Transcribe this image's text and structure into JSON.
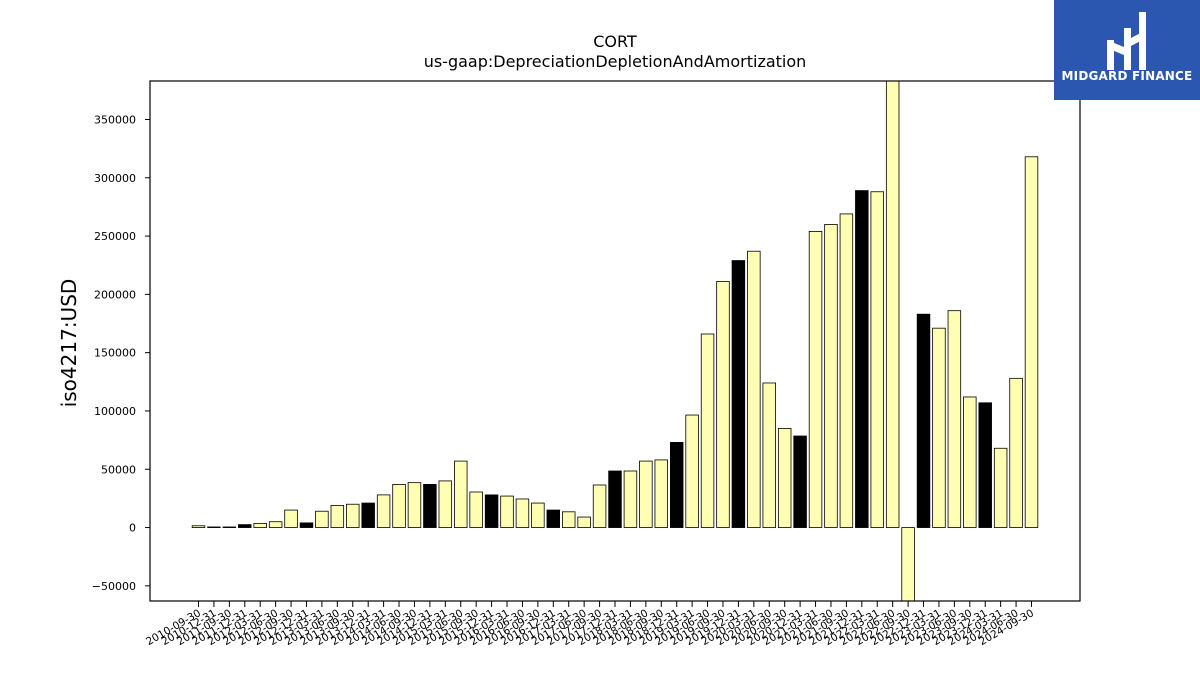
{
  "chart_data": {
    "type": "bar",
    "title": "CORT",
    "subtitle": "us-gaap:DepreciationDepletionAndAmortization",
    "xlabel": "",
    "ylabel": "iso4217:USD",
    "ylim": [
      -63000,
      383000
    ],
    "yticks": [
      -50000,
      0,
      50000,
      100000,
      150000,
      200000,
      250000,
      300000,
      350000
    ],
    "colors": {
      "highlight": "#000000",
      "normal": "#ffffb3",
      "edge": "#000000"
    },
    "categories": [
      "2010-09-30",
      "2010-12-31",
      "2011-09-30",
      "2011-12-31",
      "2012-03-31",
      "2012-06-30",
      "2012-09-30",
      "2012-12-31",
      "2013-03-31",
      "2013-06-30",
      "2013-09-30",
      "2013-12-31",
      "2014-03-31",
      "2014-06-30",
      "2014-09-30",
      "2014-12-31",
      "2015-03-31",
      "2015-06-30",
      "2015-09-30",
      "2015-12-31",
      "2016-03-31",
      "2016-06-30",
      "2016-09-30",
      "2016-12-31",
      "2017-03-31",
      "2017-06-30",
      "2017-09-30",
      "2017-12-31",
      "2018-03-31",
      "2018-06-30",
      "2018-09-30",
      "2018-12-31",
      "2019-03-31",
      "2019-06-30",
      "2019-09-30",
      "2019-12-31",
      "2020-03-31",
      "2020-06-30",
      "2020-09-30",
      "2020-12-31",
      "2021-03-31",
      "2021-06-30",
      "2021-09-30",
      "2021-12-31",
      "2022-03-31",
      "2022-06-30",
      "2022-09-30",
      "2022-12-31",
      "2023-03-31",
      "2023-06-30",
      "2023-09-30",
      "2023-12-31",
      "2024-03-31",
      "2024-06-30",
      "2024-09-30"
    ],
    "tick_labels": [
      "2010-09-30",
      "2010-12-31",
      "2011-09-30",
      "2011-12-31",
      "2012-03-31",
      "2012-06-30",
      "2012-09-30",
      "2012-12-31",
      "2013-03-31",
      "2013-06-30",
      "2013-09-30",
      "2013-12-31",
      "2014-03-31",
      "2014-06-30",
      "2014-09-30",
      "2014-12-31",
      "2015-03-31",
      "2015-06-30",
      "2015-09-30",
      "2015-12-31",
      "2016-03-31",
      "2016-06-30",
      "2016-09-30",
      "2016-12-31",
      "2017-03-31",
      "2017-06-30",
      "2017-09-30",
      "2017-12-31",
      "2018-03-31",
      "2018-06-30",
      "2018-09-30",
      "2018-12-31",
      "2019-03-31",
      "2019-06-30",
      "2019-09-30",
      "2019-12-31",
      "2020-03-31",
      "2020-06-30",
      "2020-09-30",
      "2020-12-31",
      "2021-03-31",
      "2021-06-30",
      "2021-09-30",
      "2021-12-31",
      "2022-03-31",
      "2022-06-30",
      "2022-09-30",
      "2022-12-31",
      "2023-03-31",
      "2023-06-30",
      "2023-09-30",
      "2023-12-31",
      "2024-03-31",
      "2024-06-30",
      "2024-09-30"
    ],
    "values": [
      1500,
      500,
      500,
      2500,
      3500,
      5000,
      15000,
      4000,
      14000,
      19000,
      20000,
      21000,
      28000,
      37000,
      38500,
      37000,
      40000,
      57000,
      30500,
      28000,
      27000,
      24500,
      21000,
      15000,
      13500,
      9000,
      36500,
      48500,
      48500,
      57000,
      58000,
      73000,
      96500,
      166000,
      211000,
      229000,
      237000,
      124000,
      85000,
      78500,
      254000,
      260000,
      269000,
      289000,
      288000,
      383000,
      -63000,
      183000,
      171000,
      186000,
      112000,
      107000,
      68000,
      128000,
      318000
    ],
    "highlight": [
      false,
      false,
      false,
      true,
      false,
      false,
      false,
      true,
      false,
      false,
      false,
      true,
      false,
      false,
      false,
      true,
      false,
      false,
      false,
      true,
      false,
      false,
      false,
      true,
      false,
      false,
      false,
      true,
      false,
      false,
      false,
      true,
      false,
      false,
      false,
      true,
      false,
      false,
      false,
      true,
      false,
      false,
      false,
      true,
      false,
      false,
      false,
      true,
      false,
      false,
      false,
      true,
      false,
      false,
      false
    ]
  },
  "logo": {
    "text": "MIDGARD FINANCE"
  }
}
